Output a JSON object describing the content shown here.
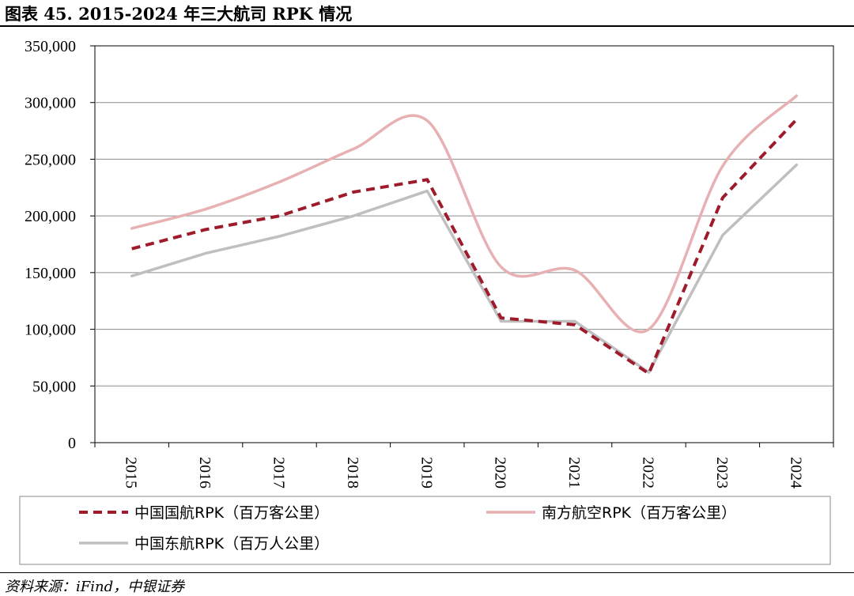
{
  "title": "图表 45.   2015-2024 年三大航司 RPK 情况",
  "source": "资料来源：iFind，中银证券",
  "chart_data": {
    "type": "line",
    "title": "",
    "xlabel": "",
    "ylabel": "",
    "categories": [
      "2015",
      "2016",
      "2017",
      "2018",
      "2019",
      "2020",
      "2021",
      "2022",
      "2023",
      "2024"
    ],
    "ylim": [
      0,
      350000
    ],
    "yticks": [
      0,
      50000,
      100000,
      150000,
      200000,
      250000,
      300000,
      350000
    ],
    "ytick_labels": [
      "0",
      "50,000",
      "100,000",
      "150,000",
      "200,000",
      "250,000",
      "300,000",
      "350,000"
    ],
    "grid": true,
    "legend_placement": "bottom",
    "series": [
      {
        "name": "中国国航RPK（百万客公里）",
        "values": [
          171000,
          188000,
          200000,
          221000,
          232000,
          110000,
          104000,
          61000,
          216000,
          285000
        ],
        "color": "#9e1b2c",
        "style": "dashed"
      },
      {
        "name": "南方航空RPK（百万客公里）",
        "values": [
          189000,
          206000,
          230000,
          259000,
          284000,
          155000,
          152000,
          100000,
          244000,
          306000
        ],
        "color": "#e7b1b3",
        "style": "solid"
      },
      {
        "name": "中国东航RPK（百万人公里）",
        "values": [
          147000,
          167000,
          182000,
          200000,
          222000,
          107000,
          107000,
          62000,
          183000,
          245000
        ],
        "color": "#bfbfbf",
        "style": "solid"
      }
    ]
  }
}
